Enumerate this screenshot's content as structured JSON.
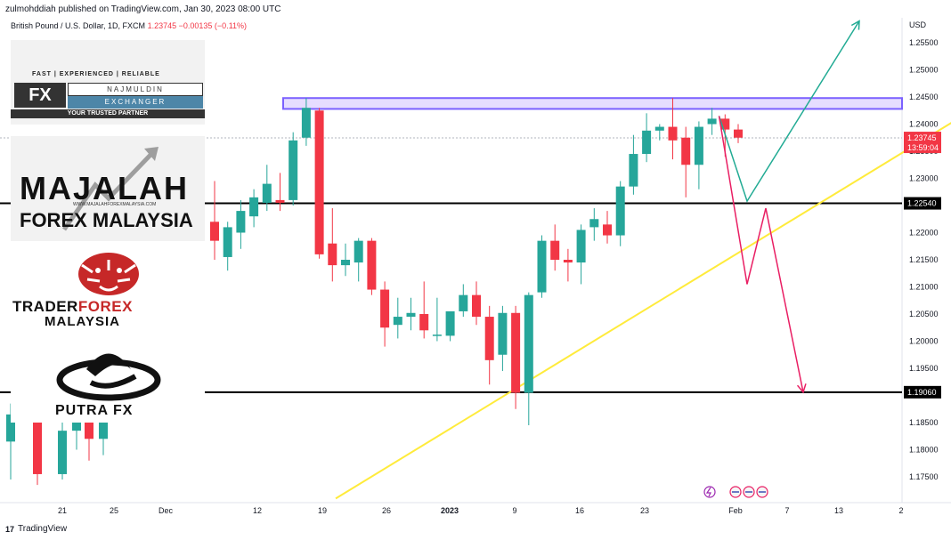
{
  "header": {
    "published": "zulmohddiah published on TradingView.com, Jan 30, 2023 08:00 UTC",
    "symbol": "British Pound / U.S. Dollar, 1D, FXCM",
    "last": "1.23745",
    "change": "−0.00135 (−0.11%)"
  },
  "footer": {
    "brand": "TradingView",
    "logo": "17"
  },
  "colors": {
    "up": "#26a69a",
    "down": "#f23645",
    "zone_fill": "#e6ddff",
    "zone_border": "#7b61ff",
    "trendline": "#ffeb3b",
    "bull_arrow": "#22ab94",
    "bear_arrow": "#e91e63",
    "level": "#000000"
  },
  "logos": {
    "fx": {
      "tagline": "FAST | EXPERIENCED | RELIABLE",
      "mark": "FX",
      "name": "NAJMULDIN",
      "sub": "EXCHANGER",
      "footer": "YOUR TRUSTED PARTNER"
    },
    "majalah": {
      "line1": "MAJALAH",
      "line2": "FOREX MALAYSIA",
      "url": "WWW.MAJALAHFOREXMALAYSIA.COM"
    },
    "traderforex": {
      "part1": "TRADER",
      "part2": "FOREX",
      "line2": "MALAYSIA"
    },
    "putra": {
      "name": "PUTRA FX"
    }
  },
  "chart_data": {
    "type": "candlestick",
    "currency": "USD",
    "ylim": [
      1.171,
      1.26
    ],
    "y_ticks": [
      1.255,
      1.25,
      1.245,
      1.24,
      1.235,
      1.23,
      1.225,
      1.22,
      1.215,
      1.21,
      1.205,
      1.2,
      1.195,
      1.19,
      1.185,
      1.18,
      1.175
    ],
    "x_ticks": [
      "21",
      "25",
      "Dec",
      "12",
      "19",
      "26",
      "2023",
      "9",
      "16",
      "23",
      "Feb",
      "7",
      "13",
      "2"
    ],
    "price_labels": {
      "last": "1.23745",
      "countdown": "13:59:04",
      "level_upper": "1.22540",
      "level_lower": "1.19060"
    },
    "levels": [
      1.2254,
      1.1906
    ],
    "resistance_zone": [
      1.2428,
      1.2448
    ],
    "candles": [
      {
        "o": 1.1815,
        "h": 1.1885,
        "l": 1.1745,
        "c": 1.1865
      },
      {
        "o": 1.1865,
        "h": 1.1878,
        "l": 1.1735,
        "c": 1.1755
      },
      {
        "o": 1.1755,
        "h": 1.1885,
        "l": 1.1745,
        "c": 1.1835
      },
      {
        "o": 1.1835,
        "h": 1.1915,
        "l": 1.18,
        "c": 1.188
      },
      {
        "o": 1.188,
        "h": 1.189,
        "l": 1.178,
        "c": 1.182
      },
      {
        "o": 1.182,
        "h": 1.187,
        "l": 1.179,
        "c": 1.185
      },
      {
        "o": 1.222,
        "h": 1.2295,
        "l": 1.215,
        "c": 1.2185
      },
      {
        "o": 1.2155,
        "h": 1.222,
        "l": 1.213,
        "c": 1.221
      },
      {
        "o": 1.22,
        "h": 1.226,
        "l": 1.217,
        "c": 1.224
      },
      {
        "o": 1.223,
        "h": 1.228,
        "l": 1.221,
        "c": 1.2265
      },
      {
        "o": 1.2255,
        "h": 1.2325,
        "l": 1.224,
        "c": 1.229
      },
      {
        "o": 1.226,
        "h": 1.231,
        "l": 1.224,
        "c": 1.2255
      },
      {
        "o": 1.226,
        "h": 1.2385,
        "l": 1.225,
        "c": 1.237
      },
      {
        "o": 1.2375,
        "h": 1.2448,
        "l": 1.236,
        "c": 1.243
      },
      {
        "o": 1.2425,
        "h": 1.243,
        "l": 1.2152,
        "c": 1.216
      },
      {
        "o": 1.218,
        "h": 1.2245,
        "l": 1.211,
        "c": 1.214
      },
      {
        "o": 1.214,
        "h": 1.218,
        "l": 1.212,
        "c": 1.215
      },
      {
        "o": 1.2145,
        "h": 1.219,
        "l": 1.211,
        "c": 1.2185
      },
      {
        "o": 1.2185,
        "h": 1.219,
        "l": 1.2085,
        "c": 1.2095
      },
      {
        "o": 1.2095,
        "h": 1.211,
        "l": 1.199,
        "c": 1.2025
      },
      {
        "o": 1.203,
        "h": 1.208,
        "l": 1.2005,
        "c": 1.2045
      },
      {
        "o": 1.2045,
        "h": 1.208,
        "l": 1.202,
        "c": 1.2052
      },
      {
        "o": 1.205,
        "h": 1.211,
        "l": 1.2005,
        "c": 1.202
      },
      {
        "o": 1.201,
        "h": 1.208,
        "l": 1.2,
        "c": 1.2012
      },
      {
        "o": 1.201,
        "h": 1.205,
        "l": 1.2,
        "c": 1.2055
      },
      {
        "o": 1.2055,
        "h": 1.2105,
        "l": 1.2045,
        "c": 1.2085
      },
      {
        "o": 1.2085,
        "h": 1.211,
        "l": 1.203,
        "c": 1.2045
      },
      {
        "o": 1.2045,
        "h": 1.2065,
        "l": 1.192,
        "c": 1.1965
      },
      {
        "o": 1.1975,
        "h": 1.2065,
        "l": 1.1945,
        "c": 1.2052
      },
      {
        "o": 1.2052,
        "h": 1.2065,
        "l": 1.1875,
        "c": 1.1905
      },
      {
        "o": 1.1905,
        "h": 1.209,
        "l": 1.1845,
        "c": 1.2085
      },
      {
        "o": 1.209,
        "h": 1.2195,
        "l": 1.208,
        "c": 1.2185
      },
      {
        "o": 1.2185,
        "h": 1.2215,
        "l": 1.213,
        "c": 1.215
      },
      {
        "o": 1.215,
        "h": 1.217,
        "l": 1.211,
        "c": 1.2145
      },
      {
        "o": 1.2145,
        "h": 1.2215,
        "l": 1.2105,
        "c": 1.2205
      },
      {
        "o": 1.221,
        "h": 1.2245,
        "l": 1.2185,
        "c": 1.2225
      },
      {
        "o": 1.2215,
        "h": 1.224,
        "l": 1.218,
        "c": 1.2195
      },
      {
        "o": 1.2195,
        "h": 1.2295,
        "l": 1.2175,
        "c": 1.2285
      },
      {
        "o": 1.2285,
        "h": 1.238,
        "l": 1.227,
        "c": 1.2345
      },
      {
        "o": 1.2345,
        "h": 1.242,
        "l": 1.233,
        "c": 1.2388
      },
      {
        "o": 1.2388,
        "h": 1.24,
        "l": 1.237,
        "c": 1.2395
      },
      {
        "o": 1.2395,
        "h": 1.2448,
        "l": 1.2335,
        "c": 1.237
      },
      {
        "o": 1.2375,
        "h": 1.2395,
        "l": 1.2265,
        "c": 1.2325
      },
      {
        "o": 1.2325,
        "h": 1.2405,
        "l": 1.228,
        "c": 1.2395
      },
      {
        "o": 1.24,
        "h": 1.243,
        "l": 1.238,
        "c": 1.241
      },
      {
        "o": 1.241,
        "h": 1.2418,
        "l": 1.234,
        "c": 1.239
      },
      {
        "o": 1.239,
        "h": 1.24,
        "l": 1.2365,
        "c": 1.2375
      }
    ],
    "annotations": [
      {
        "type": "trendline",
        "x_start": "2022-12-21",
        "y_start": 1.171,
        "x_end": "2023-02-27",
        "y_end": 1.2425
      },
      {
        "type": "bullish_path",
        "points": [
          [
            "2023-01-31",
            1.2415
          ],
          [
            "2023-02-03",
            1.2258
          ],
          [
            "2023-02-15",
            1.259
          ]
        ]
      },
      {
        "type": "bearish_path",
        "points": [
          [
            "2023-01-31",
            1.2415
          ],
          [
            "2023-02-03",
            1.2105
          ],
          [
            "2023-02-05",
            1.2245
          ],
          [
            "2023-02-09",
            1.1906
          ]
        ]
      }
    ]
  }
}
